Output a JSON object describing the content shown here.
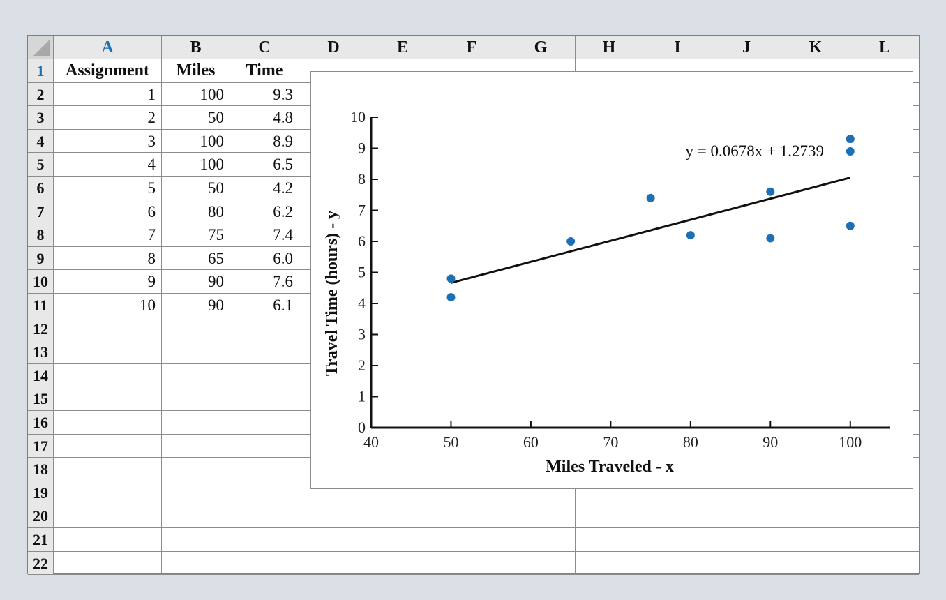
{
  "sheet": {
    "columns": [
      "A",
      "B",
      "C",
      "D",
      "E",
      "F",
      "G",
      "H",
      "I",
      "J",
      "K",
      "L"
    ],
    "rows": [
      "1",
      "2",
      "3",
      "4",
      "5",
      "6",
      "7",
      "8",
      "9",
      "10",
      "11",
      "12",
      "13",
      "14",
      "15",
      "16",
      "17",
      "18",
      "19",
      "20",
      "21",
      "22"
    ],
    "headers": [
      "Assignment",
      "Miles",
      "Time"
    ],
    "data": [
      [
        "1",
        "100",
        "9.3"
      ],
      [
        "2",
        "50",
        "4.8"
      ],
      [
        "3",
        "100",
        "8.9"
      ],
      [
        "4",
        "100",
        "6.5"
      ],
      [
        "5",
        "50",
        "4.2"
      ],
      [
        "6",
        "80",
        "6.2"
      ],
      [
        "7",
        "75",
        "7.4"
      ],
      [
        "8",
        "65",
        "6.0"
      ],
      [
        "9",
        "90",
        "7.6"
      ],
      [
        "10",
        "90",
        "6.1"
      ]
    ]
  },
  "colors": {
    "point": "#1f6fb4",
    "trendline": "#111111",
    "active_header": "#1f6fb4"
  },
  "chart_data": {
    "type": "scatter",
    "title": "",
    "xlabel": "Miles Traveled - x",
    "ylabel": "Travel Time (hours) - y",
    "xlim": [
      40,
      105
    ],
    "ylim": [
      0,
      10
    ],
    "xticks": [
      40,
      50,
      60,
      70,
      80,
      90,
      100
    ],
    "yticks": [
      0,
      1,
      2,
      3,
      4,
      5,
      6,
      7,
      8,
      9,
      10
    ],
    "grid": false,
    "points": [
      {
        "x": 100,
        "y": 9.3
      },
      {
        "x": 50,
        "y": 4.8
      },
      {
        "x": 100,
        "y": 8.9
      },
      {
        "x": 100,
        "y": 6.5
      },
      {
        "x": 50,
        "y": 4.2
      },
      {
        "x": 80,
        "y": 6.2
      },
      {
        "x": 75,
        "y": 7.4
      },
      {
        "x": 65,
        "y": 6.0
      },
      {
        "x": 90,
        "y": 7.6
      },
      {
        "x": 90,
        "y": 6.1
      }
    ],
    "trendline": {
      "slope": 0.0678,
      "intercept": 1.2739,
      "x_range": [
        50,
        100
      ],
      "label": "y = 0.0678x + 1.2739"
    }
  }
}
